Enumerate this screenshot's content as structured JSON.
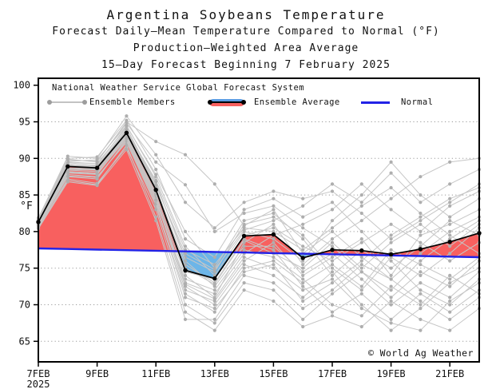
{
  "figure": {
    "title1": "Argentina Soybeans Temperature",
    "title2": "Forecast Daily–Mean Temperature Compared to Normal (°F)",
    "title3": "Production–Weighted Area Average",
    "title4": "15–Day Forecast Beginning 7 February 2025",
    "watermark": "© World Ag Weather"
  },
  "legend": {
    "header": "National Weather Service Global Forecast System",
    "members_label": "Ensemble Members",
    "average_label": "Ensemble Average",
    "normal_label": "Normal"
  },
  "chart_data": {
    "type": "line",
    "title": "Argentina Soybeans Temperature",
    "ylabel": "°F",
    "ylim": [
      62.2,
      100.95
    ],
    "yticks": [
      100,
      95,
      90,
      85,
      80,
      75,
      70,
      65
    ],
    "ygrid": [
      95,
      90,
      85,
      80,
      75,
      70,
      65
    ],
    "x_dates": [
      "7FEB",
      "8FEB",
      "9FEB",
      "10FEB",
      "11FEB",
      "12FEB",
      "13FEB",
      "14FEB",
      "15FEB",
      "16FEB",
      "17FEB",
      "18FEB",
      "19FEB",
      "20FEB",
      "21FEB",
      "22FEB"
    ],
    "xticks": [
      {
        "day": 0,
        "label": "7FEB",
        "sublabel": "2025"
      },
      {
        "day": 2,
        "label": "9FEB"
      },
      {
        "day": 4,
        "label": "11FEB"
      },
      {
        "day": 6,
        "label": "13FEB"
      },
      {
        "day": 8,
        "label": "15FEB"
      },
      {
        "day": 10,
        "label": "17FEB"
      },
      {
        "day": 12,
        "label": "19FEB"
      },
      {
        "day": 14,
        "label": "21FEB"
      }
    ],
    "ensemble_average": [
      81.3,
      88.9,
      88.7,
      93.5,
      85.7,
      74.7,
      73.6,
      79.4,
      79.6,
      76.4,
      77.5,
      77.4,
      76.9,
      77.6,
      78.6,
      79.8
    ],
    "normal": [
      77.7,
      77.62,
      77.54,
      77.46,
      77.38,
      77.3,
      77.22,
      77.14,
      77.06,
      76.98,
      76.9,
      76.82,
      76.74,
      76.66,
      76.58,
      76.5
    ],
    "members": [
      [
        81.0,
        88.2,
        88.0,
        93.0,
        84.5,
        72.0,
        70.5,
        76.0,
        78.5,
        74.0,
        76.5,
        79.0,
        74.0,
        79.5,
        81.0,
        83.0
      ],
      [
        81.5,
        89.5,
        89.3,
        94.2,
        86.5,
        76.5,
        74.5,
        81.0,
        82.0,
        79.5,
        75.0,
        72.0,
        76.5,
        74.0,
        77.0,
        80.5
      ],
      [
        80.8,
        87.8,
        87.5,
        92.2,
        83.5,
        71.0,
        69.5,
        74.5,
        75.5,
        70.5,
        73.0,
        76.0,
        79.5,
        82.0,
        84.5,
        86.0
      ],
      [
        81.9,
        90.0,
        90.2,
        95.2,
        88.5,
        79.0,
        76.5,
        83.0,
        84.5,
        82.0,
        84.0,
        80.0,
        76.0,
        72.0,
        70.0,
        73.5
      ],
      [
        80.5,
        87.2,
        86.6,
        91.5,
        83.0,
        70.0,
        67.5,
        73.0,
        72.0,
        68.0,
        71.5,
        74.5,
        71.0,
        74.5,
        72.5,
        76.0
      ],
      [
        81.3,
        89.0,
        89.0,
        93.8,
        87.0,
        77.5,
        75.5,
        80.5,
        80.0,
        77.5,
        80.5,
        83.5,
        86.0,
        82.5,
        79.5,
        77.0
      ],
      [
        81.6,
        89.8,
        89.6,
        94.8,
        89.5,
        86.4,
        80.0,
        82.5,
        83.5,
        80.5,
        78.0,
        74.5,
        72.0,
        76.0,
        79.0,
        81.5
      ],
      [
        80.7,
        87.5,
        87.2,
        92.6,
        84.0,
        73.5,
        72.0,
        77.5,
        76.5,
        73.5,
        70.0,
        68.5,
        72.5,
        70.0,
        74.0,
        71.5
      ],
      [
        81.1,
        88.5,
        88.4,
        93.2,
        85.0,
        74.0,
        71.0,
        78.5,
        81.0,
        75.5,
        79.0,
        81.5,
        84.5,
        87.5,
        89.5,
        90.0
      ],
      [
        81.4,
        89.2,
        88.9,
        94.0,
        86.0,
        75.5,
        73.0,
        79.0,
        77.5,
        72.5,
        69.0,
        71.5,
        68.0,
        71.5,
        69.0,
        72.0
      ],
      [
        80.9,
        88.0,
        87.8,
        92.9,
        84.8,
        72.5,
        70.0,
        75.5,
        74.0,
        71.0,
        74.5,
        70.0,
        66.5,
        69.5,
        73.0,
        75.0
      ],
      [
        81.7,
        89.6,
        89.8,
        94.5,
        87.5,
        78.0,
        74.0,
        80.0,
        79.0,
        76.0,
        81.5,
        85.0,
        89.5,
        85.0,
        82.0,
        84.5
      ],
      [
        80.6,
        87.0,
        86.4,
        91.8,
        82.0,
        69.0,
        66.5,
        72.0,
        70.5,
        67.0,
        68.5,
        67.0,
        70.5,
        68.0,
        66.5,
        69.5
      ],
      [
        81.2,
        88.7,
        88.6,
        93.4,
        85.5,
        74.5,
        73.5,
        79.5,
        80.5,
        78.0,
        76.0,
        78.5,
        81.0,
        78.5,
        76.0,
        78.5
      ],
      [
        81.8,
        90.3,
        90.0,
        95.8,
        90.5,
        84.0,
        80.5,
        84.0,
        85.5,
        84.5,
        85.5,
        82.5,
        79.0,
        81.5,
        84.0,
        86.5
      ],
      [
        80.4,
        86.8,
        86.3,
        91.2,
        81.5,
        68.0,
        68.0,
        74.0,
        73.0,
        69.5,
        72.0,
        75.5,
        73.5,
        77.0,
        80.0,
        82.0
      ],
      [
        81.3,
        88.9,
        88.8,
        93.6,
        86.8,
        76.0,
        72.5,
        78.0,
        78.0,
        74.5,
        77.0,
        73.5,
        70.0,
        73.0,
        71.0,
        74.5
      ],
      [
        81.0,
        88.4,
        88.2,
        93.1,
        85.2,
        73.0,
        71.5,
        77.0,
        79.5,
        81.0,
        83.0,
        86.5,
        83.0,
        80.0,
        83.5,
        85.5
      ],
      [
        81.5,
        89.4,
        89.1,
        94.4,
        87.8,
        80.0,
        75.0,
        81.5,
        82.5,
        79.0,
        74.0,
        77.5,
        75.0,
        78.0,
        81.5,
        79.5
      ],
      [
        80.8,
        87.6,
        87.4,
        92.4,
        83.8,
        71.5,
        69.0,
        75.0,
        76.0,
        73.0,
        75.5,
        72.5,
        77.5,
        75.5,
        73.5,
        76.5
      ],
      [
        81.6,
        89.9,
        89.5,
        95.0,
        92.3,
        90.5,
        86.5,
        80.8,
        83.0,
        77.0,
        80.0,
        76.5,
        73.5,
        70.5,
        68.0,
        71.0
      ],
      [
        81.1,
        88.6,
        88.5,
        93.3,
        85.8,
        75.0,
        72.8,
        78.8,
        77.0,
        75.0,
        78.5,
        75.0,
        78.5,
        81.0,
        78.0,
        81.0
      ],
      [
        80.9,
        88.1,
        87.9,
        92.7,
        84.3,
        72.8,
        70.8,
        76.5,
        75.0,
        72.0,
        73.5,
        69.5,
        67.5,
        66.5,
        70.5,
        73.0
      ],
      [
        81.4,
        89.1,
        88.8,
        93.9,
        86.3,
        77.0,
        74.8,
        80.2,
        81.5,
        83.5,
        86.5,
        84.0,
        88.0,
        84.0,
        86.5,
        88.5
      ]
    ],
    "colors": {
      "above_normal": "#f8605f",
      "below_normal": "#6cb5e8",
      "normal_line": "#2222e6",
      "average_line": "#000000",
      "member_line": "#c6c6c6",
      "member_dot": "#aeaeae"
    },
    "legend_position": "top-left-inside",
    "grid": "dotted-horizontal"
  }
}
